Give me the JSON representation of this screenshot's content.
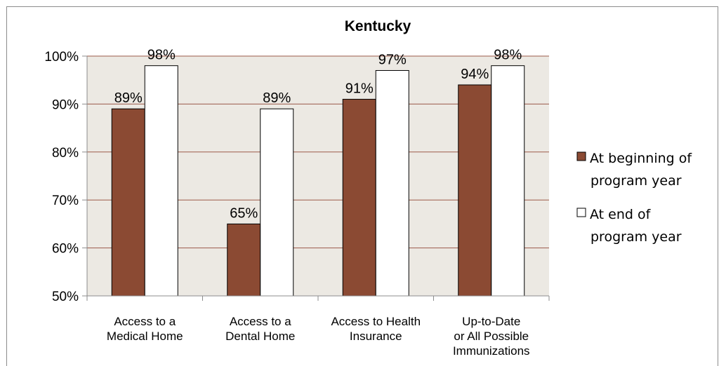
{
  "chart_data": {
    "type": "bar",
    "title": "Kentucky",
    "xlabel": "",
    "ylabel": "",
    "ylim": [
      50,
      100
    ],
    "ytick_values": [
      50,
      60,
      70,
      80,
      90,
      100
    ],
    "ytick_labels": [
      "50%",
      "60%",
      "70%",
      "80%",
      "90%",
      "100%"
    ],
    "grid": true,
    "legend_position": "right",
    "categories": [
      [
        "Access to a",
        "Medical Home"
      ],
      [
        "Access to a",
        "Dental Home"
      ],
      [
        "Access to Health",
        "Insurance"
      ],
      [
        "Up-to-Date",
        "or All Possible",
        "Immunizations"
      ]
    ],
    "series": [
      {
        "name": [
          "At beginning of",
          "program year"
        ],
        "values": [
          89,
          65,
          91,
          94
        ],
        "labels": [
          "89%",
          "65%",
          "91%",
          "94%"
        ],
        "color": "#8b4a33"
      },
      {
        "name": [
          "At end of",
          "program year"
        ],
        "values": [
          98,
          89,
          97,
          98
        ],
        "labels": [
          "98%",
          "89%",
          "97%",
          "98%"
        ],
        "color": "#ffffff"
      }
    ]
  },
  "colors": {
    "plot_background": "#ece9e3",
    "gridline": "#9b5a4a",
    "bar_outline": "#000000"
  }
}
